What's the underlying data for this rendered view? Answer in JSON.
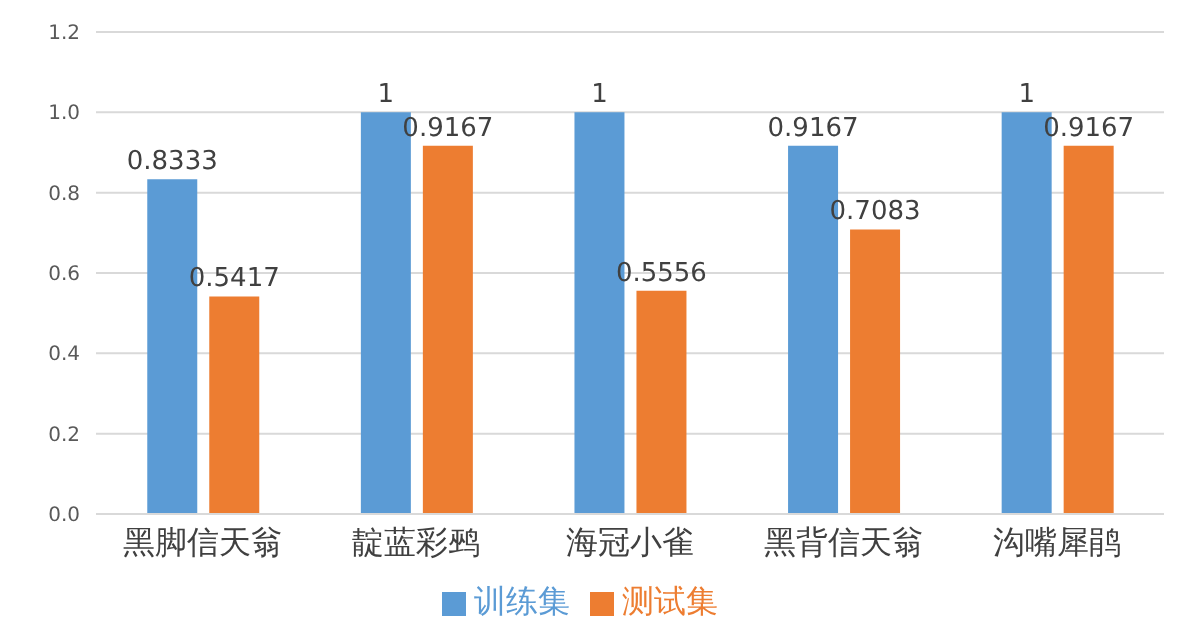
{
  "chart_data": {
    "type": "bar",
    "categories": [
      "黑脚信天翁",
      "靛蓝彩鹀",
      "海冠小雀",
      "黑背信天翁",
      "沟嘴犀鹃"
    ],
    "series": [
      {
        "name": "训练集",
        "color": "#5b9bd5",
        "values": [
          0.8333,
          1,
          1,
          0.9167,
          1
        ]
      },
      {
        "name": "测试集",
        "color": "#ed7d31",
        "values": [
          0.5417,
          0.9167,
          0.5556,
          0.7083,
          0.9167
        ]
      }
    ],
    "ylim": [
      0,
      1.2
    ],
    "yticks": [
      {
        "value": 0,
        "label": "0.0"
      },
      {
        "value": 0.2,
        "label": "0.2"
      },
      {
        "value": 0.4,
        "label": "0.4"
      },
      {
        "value": 0.6,
        "label": "0.6"
      },
      {
        "value": 0.8,
        "label": "0.8"
      },
      {
        "value": 1,
        "label": "1.0"
      },
      {
        "value": 1.2,
        "label": "1.2"
      }
    ],
    "grid": "y",
    "legend": "bottom",
    "data_labels": true
  }
}
